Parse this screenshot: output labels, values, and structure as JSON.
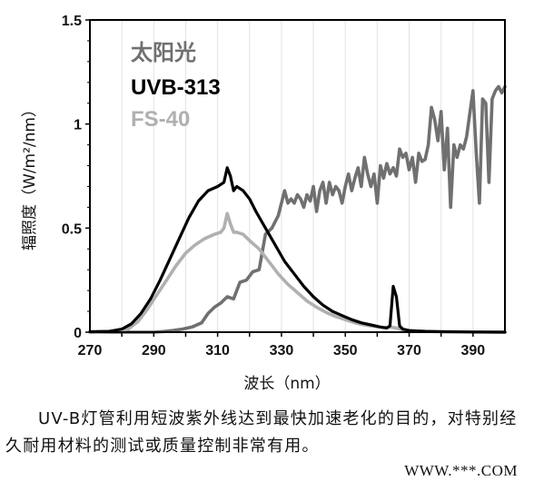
{
  "chart_data": {
    "type": "line",
    "xlabel": "波长（nm）",
    "ylabel": "辐照度（W/m²/nm）",
    "xlim": [
      270,
      400
    ],
    "ylim": [
      0,
      1.5
    ],
    "xticks": [
      270,
      290,
      310,
      330,
      350,
      370,
      390
    ],
    "yticks": [
      0,
      0.5,
      1,
      1.5
    ],
    "yticklabels": [
      "0",
      "0.5",
      "1",
      "1.5"
    ],
    "grid": "vertical",
    "legend_placement": "top-left",
    "series": [
      {
        "name": "太阳光",
        "color": "#707070",
        "x": [
          270,
          290,
          293,
          296,
          299,
          302,
          305,
          307,
          309,
          311,
          313,
          315,
          317,
          319,
          321,
          323,
          325,
          327,
          329,
          330,
          331,
          332,
          333,
          334,
          335,
          336,
          337,
          338,
          339,
          340,
          341,
          342,
          343,
          344,
          345,
          346,
          347,
          348,
          349,
          350,
          351,
          352,
          353,
          354,
          355,
          356,
          357,
          358,
          359,
          360,
          361,
          362,
          363,
          364,
          365,
          366,
          367,
          368,
          369,
          370,
          371,
          372,
          373,
          374,
          375,
          376,
          377,
          378,
          379,
          380,
          381,
          382,
          383,
          384,
          385,
          386,
          387,
          388,
          389,
          390,
          391,
          392,
          393,
          394,
          395,
          396,
          397,
          398,
          399,
          400
        ],
        "y": [
          0,
          0,
          0.003,
          0.008,
          0.015,
          0.025,
          0.045,
          0.09,
          0.12,
          0.14,
          0.17,
          0.16,
          0.24,
          0.25,
          0.29,
          0.3,
          0.47,
          0.5,
          0.56,
          0.62,
          0.68,
          0.62,
          0.64,
          0.62,
          0.66,
          0.64,
          0.6,
          0.66,
          0.63,
          0.7,
          0.58,
          0.68,
          0.72,
          0.62,
          0.72,
          0.66,
          0.7,
          0.68,
          0.62,
          0.7,
          0.76,
          0.68,
          0.74,
          0.79,
          0.7,
          0.84,
          0.76,
          0.7,
          0.76,
          0.62,
          0.8,
          0.74,
          0.81,
          0.76,
          0.79,
          0.75,
          0.88,
          0.84,
          0.86,
          0.78,
          0.84,
          0.72,
          0.86,
          0.82,
          0.83,
          0.9,
          1.08,
          1.02,
          0.92,
          1.06,
          0.78,
          0.98,
          0.6,
          0.9,
          0.84,
          0.9,
          0.88,
          0.94,
          1.05,
          1.16,
          0.86,
          0.62,
          1.12,
          1.1,
          0.72,
          1.12,
          1.16,
          1.18,
          1.15,
          1.18
        ]
      },
      {
        "name": "UVB-313",
        "color": "#000000",
        "x": [
          270,
          276,
          280,
          283,
          286,
          289,
          292,
          295,
          298,
          301,
          304,
          307,
          310,
          312,
          313,
          314,
          315,
          316,
          318,
          320,
          322,
          325,
          328,
          331,
          334,
          337,
          340,
          343,
          346,
          349,
          352,
          355,
          358,
          361,
          363,
          364,
          365,
          366,
          367,
          368,
          370,
          375,
          380,
          390,
          400
        ],
        "y": [
          0.002,
          0.004,
          0.015,
          0.04,
          0.09,
          0.16,
          0.25,
          0.35,
          0.45,
          0.55,
          0.63,
          0.68,
          0.7,
          0.72,
          0.79,
          0.75,
          0.68,
          0.7,
          0.68,
          0.64,
          0.58,
          0.5,
          0.42,
          0.34,
          0.28,
          0.22,
          0.17,
          0.13,
          0.1,
          0.08,
          0.06,
          0.045,
          0.035,
          0.025,
          0.02,
          0.03,
          0.22,
          0.17,
          0.03,
          0.015,
          0.008,
          0.004,
          0.002,
          0.001,
          0.0
        ]
      },
      {
        "name": "FS-40",
        "color": "#b0b0b0",
        "x": [
          270,
          278,
          282,
          285,
          288,
          291,
          294,
          297,
          300,
          303,
          306,
          309,
          311,
          312,
          313,
          314,
          315,
          316,
          318,
          320,
          323,
          326,
          329,
          332,
          335,
          338,
          341,
          344,
          347,
          350,
          353,
          356,
          359,
          362,
          364,
          366,
          368,
          372,
          380,
          390,
          400
        ],
        "y": [
          0.0,
          0.004,
          0.015,
          0.05,
          0.11,
          0.18,
          0.25,
          0.32,
          0.38,
          0.42,
          0.45,
          0.47,
          0.48,
          0.5,
          0.57,
          0.52,
          0.48,
          0.48,
          0.47,
          0.44,
          0.4,
          0.34,
          0.28,
          0.23,
          0.19,
          0.15,
          0.12,
          0.095,
          0.075,
          0.06,
          0.045,
          0.035,
          0.028,
          0.022,
          0.025,
          0.02,
          0.01,
          0.005,
          0.002,
          0.001,
          0.0
        ]
      }
    ]
  },
  "caption": "UV-B灯管利用短波紫外线达到最快加速老化的目的，对特别经久耐用材料的测试或质量控制非常有用。",
  "watermark": "WWW.***.COM"
}
